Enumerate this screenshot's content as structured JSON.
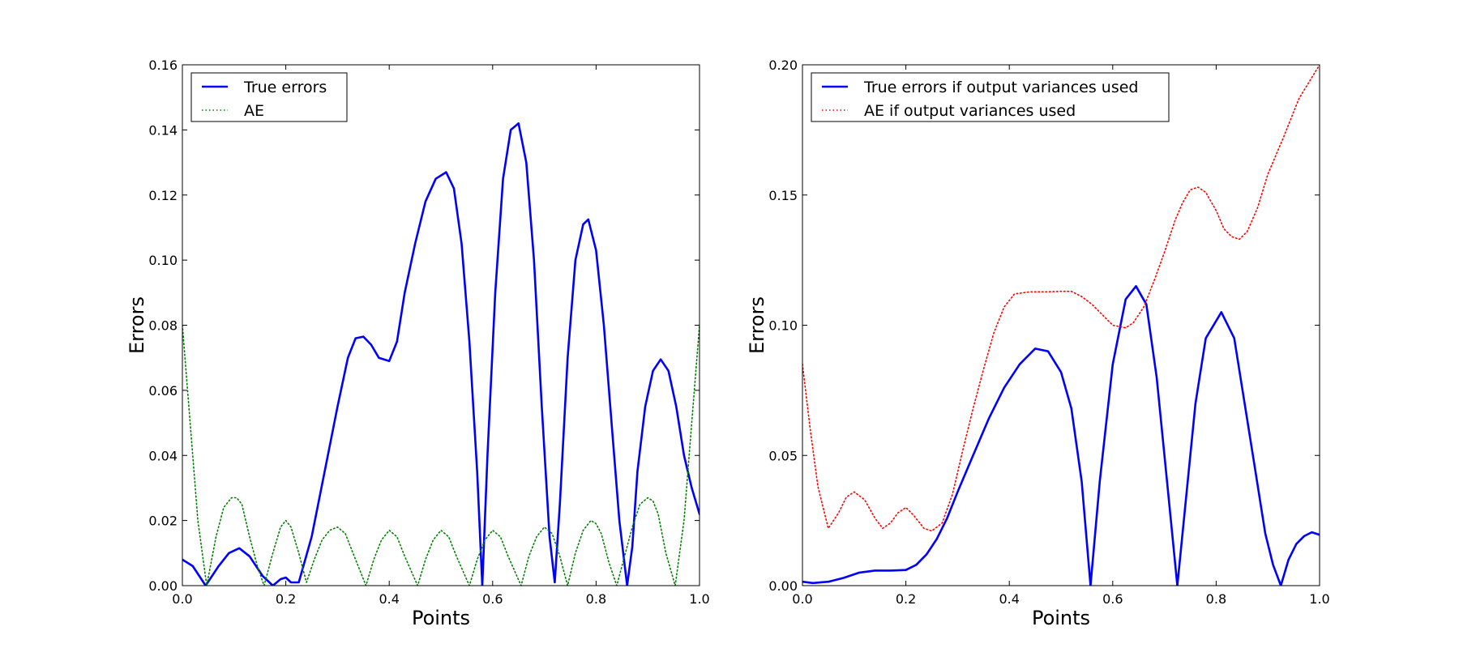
{
  "chart_data": [
    {
      "type": "line",
      "xlabel": "Points",
      "ylabel": "Errors",
      "xlim": [
        0.0,
        1.0
      ],
      "ylim": [
        0.0,
        0.16
      ],
      "xticks": [
        "0.0",
        "0.2",
        "0.4",
        "0.6",
        "0.8",
        "1.0"
      ],
      "yticks": [
        "0.00",
        "0.02",
        "0.04",
        "0.06",
        "0.08",
        "0.10",
        "0.12",
        "0.14",
        "0.16"
      ],
      "legend_position": "upper-left",
      "grid": false,
      "series": [
        {
          "name": "True errors",
          "color": "#0000ff",
          "style": "solid",
          "x": [
            0.0,
            0.02,
            0.045,
            0.07,
            0.09,
            0.11,
            0.13,
            0.155,
            0.175,
            0.19,
            0.2,
            0.21,
            0.225,
            0.25,
            0.275,
            0.3,
            0.32,
            0.335,
            0.35,
            0.365,
            0.38,
            0.4,
            0.415,
            0.43,
            0.45,
            0.47,
            0.49,
            0.51,
            0.525,
            0.54,
            0.555,
            0.57,
            0.58,
            0.59,
            0.605,
            0.62,
            0.635,
            0.65,
            0.665,
            0.68,
            0.695,
            0.71,
            0.72,
            0.73,
            0.745,
            0.76,
            0.775,
            0.785,
            0.8,
            0.815,
            0.83,
            0.845,
            0.86,
            0.87,
            0.88,
            0.895,
            0.91,
            0.925,
            0.94,
            0.955,
            0.97,
            0.985,
            1.0
          ],
          "y": [
            0.008,
            0.006,
            0.0,
            0.006,
            0.01,
            0.0115,
            0.009,
            0.003,
            0.0,
            0.002,
            0.0025,
            0.001,
            0.001,
            0.015,
            0.035,
            0.055,
            0.07,
            0.076,
            0.0765,
            0.074,
            0.07,
            0.069,
            0.075,
            0.09,
            0.105,
            0.118,
            0.125,
            0.127,
            0.122,
            0.105,
            0.075,
            0.035,
            0.0,
            0.04,
            0.09,
            0.125,
            0.14,
            0.142,
            0.13,
            0.1,
            0.055,
            0.015,
            0.001,
            0.025,
            0.07,
            0.1,
            0.111,
            0.1125,
            0.103,
            0.08,
            0.05,
            0.02,
            0.0,
            0.012,
            0.035,
            0.055,
            0.066,
            0.0695,
            0.066,
            0.055,
            0.04,
            0.03,
            0.022
          ]
        },
        {
          "name": "AE",
          "color": "#008000",
          "style": "dotted",
          "x": [
            0.0,
            0.015,
            0.03,
            0.047,
            0.065,
            0.08,
            0.095,
            0.105,
            0.115,
            0.13,
            0.145,
            0.158,
            0.175,
            0.19,
            0.2,
            0.21,
            0.225,
            0.24,
            0.255,
            0.27,
            0.285,
            0.3,
            0.315,
            0.33,
            0.355,
            0.37,
            0.385,
            0.4,
            0.415,
            0.43,
            0.455,
            0.47,
            0.485,
            0.5,
            0.515,
            0.53,
            0.555,
            0.57,
            0.585,
            0.6,
            0.615,
            0.63,
            0.655,
            0.67,
            0.685,
            0.7,
            0.715,
            0.73,
            0.745,
            0.76,
            0.775,
            0.79,
            0.8,
            0.81,
            0.825,
            0.84,
            0.855,
            0.87,
            0.885,
            0.9,
            0.91,
            0.92,
            0.935,
            0.953,
            0.97,
            0.985,
            1.0
          ],
          "y": [
            0.08,
            0.05,
            0.02,
            0.0,
            0.015,
            0.024,
            0.027,
            0.027,
            0.025,
            0.015,
            0.006,
            0.0,
            0.01,
            0.018,
            0.02,
            0.018,
            0.01,
            0.001,
            0.008,
            0.014,
            0.017,
            0.018,
            0.016,
            0.01,
            0.0,
            0.008,
            0.014,
            0.017,
            0.015,
            0.009,
            0.0,
            0.008,
            0.014,
            0.017,
            0.015,
            0.009,
            0.0,
            0.008,
            0.014,
            0.017,
            0.015,
            0.009,
            0.0,
            0.009,
            0.015,
            0.018,
            0.016,
            0.009,
            0.0,
            0.01,
            0.017,
            0.02,
            0.019,
            0.016,
            0.007,
            0.0,
            0.009,
            0.018,
            0.025,
            0.027,
            0.026,
            0.022,
            0.01,
            0.0,
            0.02,
            0.05,
            0.08
          ]
        }
      ]
    },
    {
      "type": "line",
      "xlabel": "Points",
      "ylabel": "Errors",
      "xlim": [
        0.0,
        1.0
      ],
      "ylim": [
        0.0,
        0.2
      ],
      "xticks": [
        "0.0",
        "0.2",
        "0.4",
        "0.6",
        "0.8",
        "1.0"
      ],
      "yticks": [
        "0.00",
        "0.05",
        "0.10",
        "0.15",
        "0.20"
      ],
      "legend_position": "upper-left",
      "grid": false,
      "series": [
        {
          "name": "True errors if output variances used",
          "color": "#0000ff",
          "style": "solid",
          "x": [
            0.0,
            0.02,
            0.05,
            0.08,
            0.11,
            0.14,
            0.17,
            0.2,
            0.22,
            0.24,
            0.26,
            0.28,
            0.3,
            0.33,
            0.36,
            0.39,
            0.42,
            0.45,
            0.475,
            0.5,
            0.52,
            0.54,
            0.557,
            0.575,
            0.6,
            0.625,
            0.645,
            0.665,
            0.685,
            0.705,
            0.725,
            0.74,
            0.76,
            0.78,
            0.81,
            0.835,
            0.855,
            0.875,
            0.895,
            0.91,
            0.925,
            0.94,
            0.955,
            0.97,
            0.985,
            1.0
          ],
          "y": [
            0.0015,
            0.001,
            0.0015,
            0.003,
            0.005,
            0.0058,
            0.0058,
            0.006,
            0.008,
            0.012,
            0.018,
            0.026,
            0.036,
            0.05,
            0.064,
            0.076,
            0.085,
            0.091,
            0.09,
            0.082,
            0.068,
            0.04,
            0.0,
            0.04,
            0.085,
            0.11,
            0.115,
            0.108,
            0.08,
            0.04,
            0.0,
            0.03,
            0.07,
            0.095,
            0.105,
            0.095,
            0.07,
            0.045,
            0.02,
            0.008,
            0.0,
            0.01,
            0.016,
            0.019,
            0.0205,
            0.0195
          ]
        },
        {
          "name": "AE if output variances used",
          "color": "#ff0000",
          "style": "dotted",
          "x": [
            0.0,
            0.015,
            0.03,
            0.05,
            0.07,
            0.085,
            0.1,
            0.12,
            0.14,
            0.155,
            0.17,
            0.185,
            0.2,
            0.215,
            0.235,
            0.25,
            0.27,
            0.29,
            0.31,
            0.33,
            0.35,
            0.37,
            0.39,
            0.41,
            0.44,
            0.47,
            0.5,
            0.52,
            0.54,
            0.56,
            0.58,
            0.6,
            0.625,
            0.64,
            0.66,
            0.68,
            0.7,
            0.72,
            0.735,
            0.75,
            0.765,
            0.78,
            0.8,
            0.815,
            0.83,
            0.845,
            0.86,
            0.88,
            0.9,
            0.93,
            0.96,
            1.0
          ],
          "y": [
            0.085,
            0.06,
            0.038,
            0.022,
            0.028,
            0.034,
            0.036,
            0.033,
            0.026,
            0.022,
            0.024,
            0.028,
            0.03,
            0.027,
            0.022,
            0.021,
            0.024,
            0.035,
            0.052,
            0.068,
            0.083,
            0.097,
            0.107,
            0.112,
            0.1128,
            0.1128,
            0.113,
            0.113,
            0.111,
            0.108,
            0.104,
            0.1,
            0.099,
            0.101,
            0.107,
            0.117,
            0.128,
            0.14,
            0.147,
            0.152,
            0.153,
            0.151,
            0.144,
            0.137,
            0.134,
            0.133,
            0.136,
            0.145,
            0.158,
            0.172,
            0.187,
            0.2
          ]
        }
      ]
    }
  ]
}
